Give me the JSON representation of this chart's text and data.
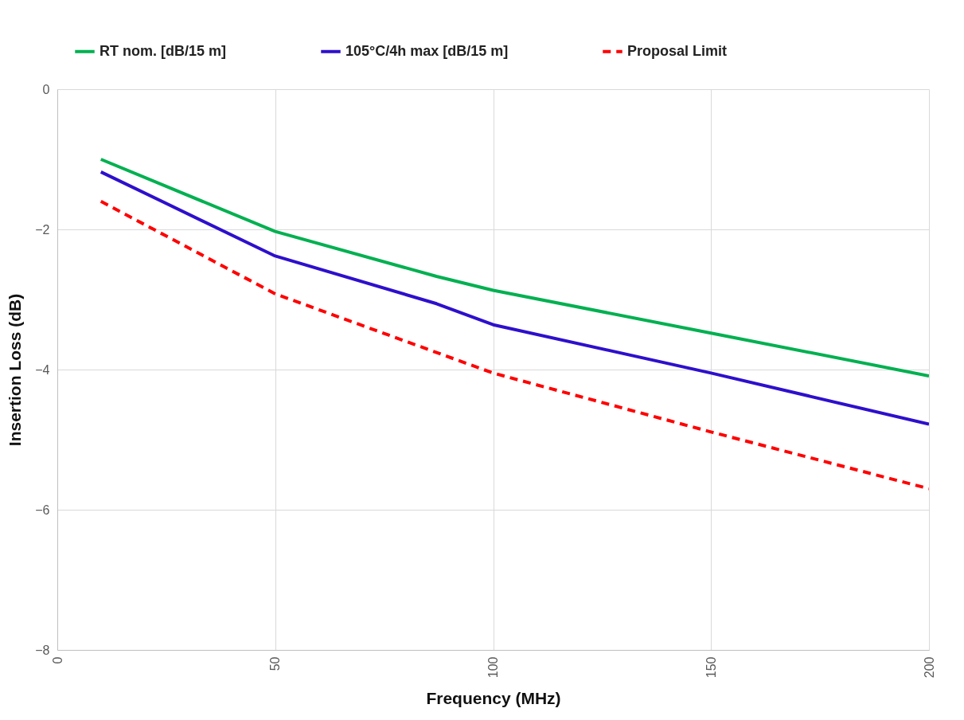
{
  "chart_data": {
    "type": "line",
    "xlabel": "Frequency (MHz)",
    "ylabel": "Insertion Loss (dB)",
    "xlim": [
      0,
      200
    ],
    "xticks": [
      0,
      50,
      100,
      150,
      200
    ],
    "ylim": [
      -8,
      0
    ],
    "yticks": [
      -8,
      -6,
      -4,
      -2,
      0
    ],
    "grid": true,
    "legend": "top",
    "line_style": "solid",
    "series": [
      {
        "name": "RT nom. [dB/15 m]",
        "color": "#00b050",
        "x": [
          10,
          50,
          87,
          100,
          150,
          200
        ],
        "values": [
          -1.0,
          -2.03,
          -2.67,
          -2.87,
          -3.48,
          -4.09
        ]
      },
      {
        "name": "105°C/4h max [dB/15 m]",
        "color": "#2e0fcc",
        "x": [
          10,
          50,
          87,
          100,
          150,
          200
        ],
        "values": [
          -1.18,
          -2.38,
          -3.06,
          -3.36,
          -4.05,
          -4.78
        ]
      },
      {
        "name": "Proposal Limit",
        "color": "#ff0000",
        "line_style": "dashed",
        "x": [
          10,
          50,
          100,
          150,
          200
        ],
        "values": [
          -1.6,
          -2.92,
          -4.05,
          -4.89,
          -5.7
        ]
      }
    ]
  }
}
